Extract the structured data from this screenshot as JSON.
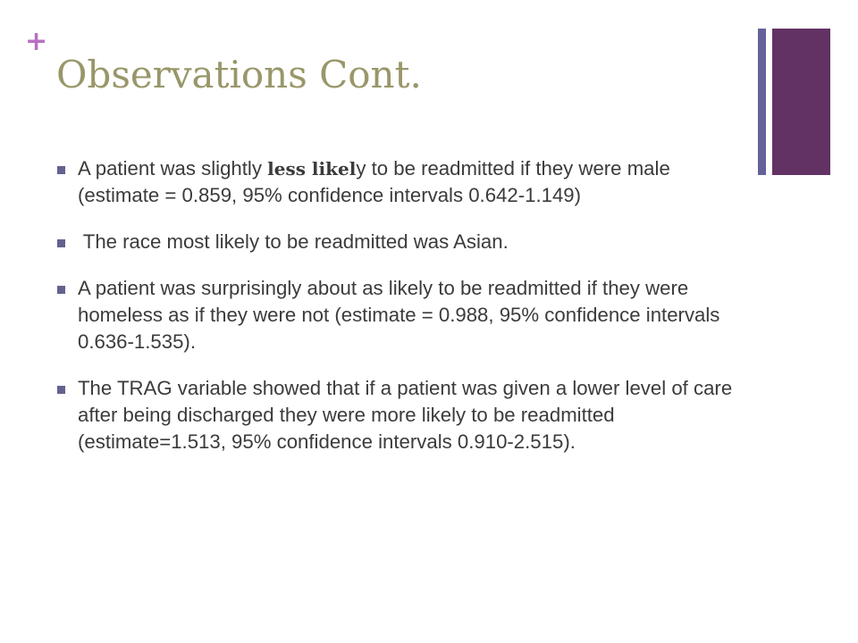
{
  "slide": {
    "plus_mark": "+",
    "title": "Observations Cont.",
    "bullets": [
      {
        "before": "A patient was slightly ",
        "emphasis": "less likel",
        "after": "y to be readmitted if they were male (estimate = 0.859, 95% confidence intervals 0.642-1.149)"
      },
      {
        "text": " The race most likely to be readmitted was Asian."
      },
      {
        "text": "A patient was surprisingly about as likely to be readmitted if they were homeless as if they were not (estimate = 0.988, 95% confidence intervals 0.636-1.535)."
      },
      {
        "text": "The TRAG variable showed that if a patient was given a lower level of care after being discharged they were more likely to be readmitted (estimate=1.513, 95% confidence intervals 0.910-2.515)."
      }
    ]
  },
  "colors": {
    "title": "#99976a",
    "plus_mark": "#b86fc1",
    "body_text": "#3b3b3b",
    "bullet_square": "#63628f",
    "accent_thin_bar": "#65629a",
    "accent_thick_bar": "#613263"
  }
}
